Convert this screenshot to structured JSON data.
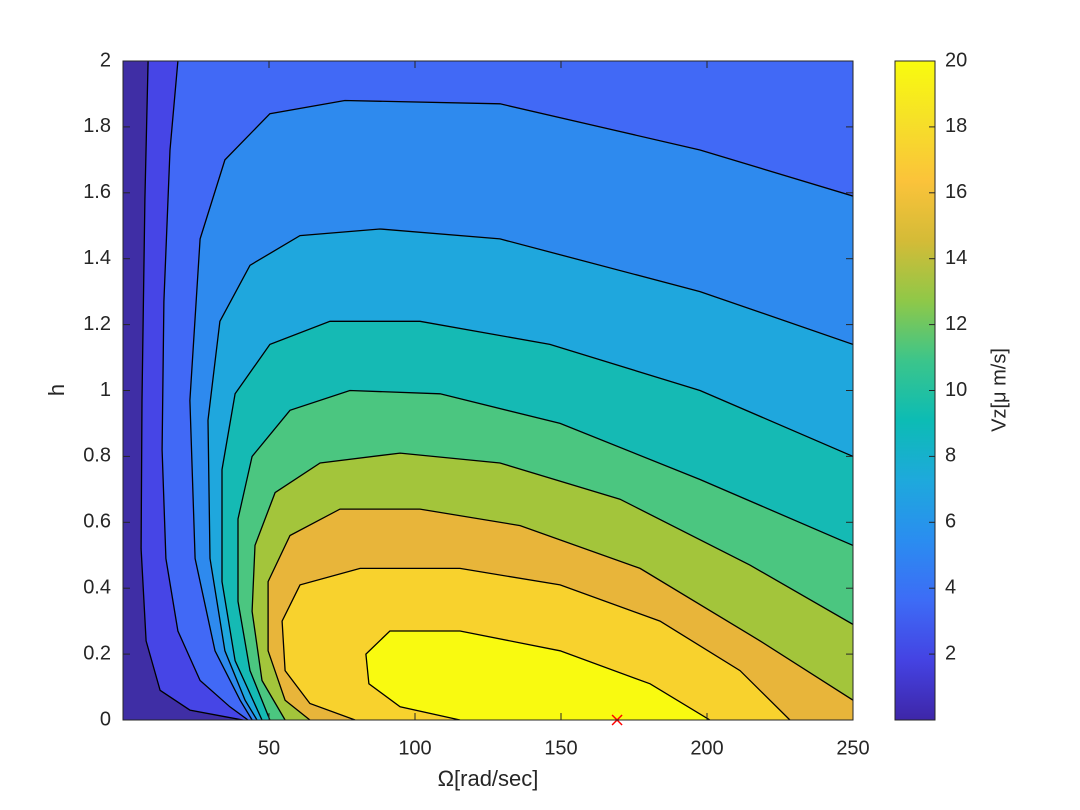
{
  "chart_data": {
    "type": "contour",
    "xlabel": "Ω[rad/sec]",
    "ylabel": "h",
    "colorbar_label": "Vz[μ m/s]",
    "xlim": [
      0,
      250
    ],
    "ylim": [
      0,
      2
    ],
    "xticks": [
      50,
      100,
      150,
      200,
      250
    ],
    "yticks": [
      0,
      0.2,
      0.4,
      0.6,
      0.8,
      1,
      1.2,
      1.4,
      1.6,
      1.8,
      2
    ],
    "clim": [
      0,
      20
    ],
    "cticks": [
      2,
      4,
      6,
      8,
      10,
      12,
      14,
      16,
      18,
      20
    ],
    "colormap": [
      "#3e26a8",
      "#4443e3",
      "#3d6cf6",
      "#2a8df0",
      "#1ea9dc",
      "#0cbcb4",
      "#3bc58b",
      "#8fc848",
      "#d4bb37",
      "#fbc33a",
      "#f6e028",
      "#f9fb0e"
    ],
    "band_colors": [
      "#3f2ea5",
      "#4645e6",
      "#4169f6",
      "#2e8aee",
      "#1fa7dd",
      "#15bab4",
      "#4bc680",
      "#a3c53b",
      "#e8b53a",
      "#f8d22d",
      "#f9fa10"
    ],
    "line_color": "#000000",
    "contours": [
      {
        "level": 2,
        "x": [
          8.6,
          7.5,
          6.5,
          6.2,
          7.9,
          12.7,
          22.9,
          34.9,
          41.1
        ],
        "y": [
          2,
          1.58,
          0.97,
          0.52,
          0.24,
          0.09,
          0.03,
          0.01,
          0
        ]
      },
      {
        "level": 4,
        "x": [
          18.8,
          16.1,
          14.0,
          13.4,
          14.7,
          18.8,
          26.4,
          36.6,
          42.8
        ],
        "y": [
          2,
          1.73,
          1.27,
          0.82,
          0.49,
          0.27,
          0.12,
          0.04,
          0
        ]
      },
      {
        "level": 6,
        "x": [
          250,
          197.6,
          129.1,
          76.0,
          50.3,
          34.9,
          26.4,
          22.9,
          24.7,
          31.5,
          40.1,
          44.2
        ],
        "y": [
          1.59,
          1.73,
          1.87,
          1.88,
          1.84,
          1.7,
          1.46,
          0.97,
          0.49,
          0.21,
          0.06,
          0
        ]
      },
      {
        "level": 8,
        "x": [
          250,
          197.6,
          129.1,
          88.0,
          60.6,
          43.5,
          33.2,
          29.1,
          29.8,
          34.9,
          41.8,
          45.9
        ],
        "y": [
          1.14,
          1.3,
          1.46,
          1.49,
          1.47,
          1.38,
          1.21,
          0.91,
          0.49,
          0.21,
          0.06,
          0
        ]
      },
      {
        "level": 10,
        "x": [
          250,
          197.6,
          146.2,
          101.7,
          70.9,
          50.3,
          38.4,
          33.9,
          33.9,
          38.4,
          47.6
        ],
        "y": [
          0.8,
          1.0,
          1.14,
          1.21,
          1.21,
          1.14,
          0.99,
          0.76,
          0.42,
          0.18,
          0
        ]
      },
      {
        "level": 12,
        "x": [
          250,
          197.6,
          149.7,
          108.6,
          77.7,
          57.2,
          44.2,
          39.4,
          39.4,
          43.5,
          50.3
        ],
        "y": [
          0.53,
          0.73,
          0.9,
          0.99,
          1.0,
          0.94,
          0.8,
          0.61,
          0.36,
          0.15,
          0
        ]
      },
      {
        "level": 14,
        "x": [
          250,
          214.7,
          170.2,
          129.1,
          94.9,
          67.5,
          52.1,
          45.2,
          44.2,
          47.6,
          55.5
        ],
        "y": [
          0.29,
          0.47,
          0.67,
          0.78,
          0.81,
          0.78,
          0.69,
          0.53,
          0.33,
          0.12,
          0
        ]
      },
      {
        "level": 16,
        "x": [
          250,
          218.2,
          177.1,
          136.0,
          101.7,
          74.3,
          57.2,
          49.7,
          49.7,
          55.5,
          64.0
        ],
        "y": [
          0.06,
          0.24,
          0.46,
          0.59,
          0.64,
          0.64,
          0.56,
          0.42,
          0.21,
          0.06,
          0
        ]
      },
      {
        "level": 18,
        "x": [
          228.4,
          211.3,
          183.9,
          149.7,
          115.4,
          81.2,
          60.6,
          54.5,
          55.5,
          64.0,
          79.5
        ],
        "y": [
          0,
          0.15,
          0.3,
          0.41,
          0.46,
          0.46,
          0.41,
          0.3,
          0.15,
          0.05,
          0
        ]
      },
      {
        "level": 20,
        "x": [
          201.0,
          180.5,
          149.7,
          115.4,
          91.4,
          83.2,
          84.2,
          94.9,
          115.4
        ],
        "y": [
          0,
          0.11,
          0.21,
          0.27,
          0.27,
          0.2,
          0.11,
          0.04,
          0
        ]
      }
    ],
    "marker": {
      "x": 169.2,
      "y": 0,
      "color": "#ff0000"
    }
  }
}
